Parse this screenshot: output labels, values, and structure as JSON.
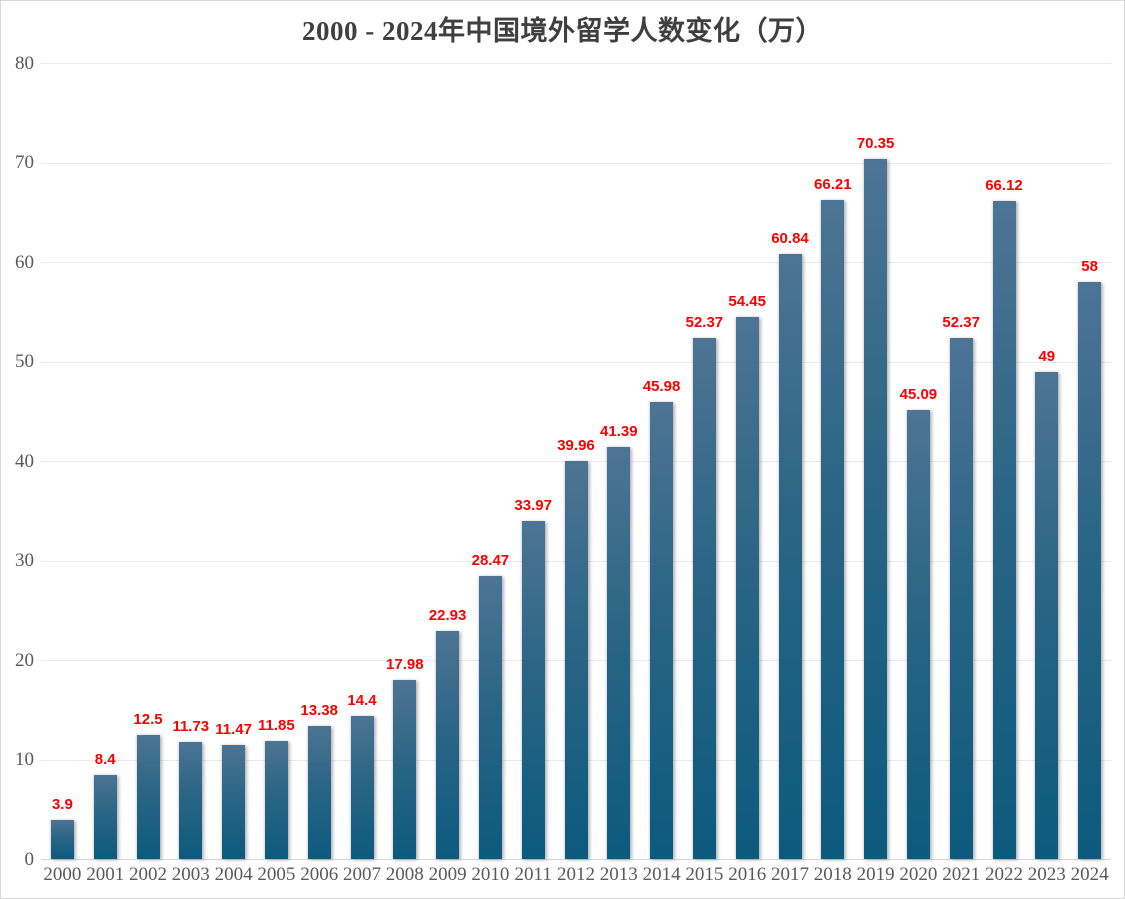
{
  "chart_data": {
    "type": "bar",
    "title": "2000 - 2024年中国境外留学人数变化（万）",
    "categories": [
      "2000",
      "2001",
      "2002",
      "2003",
      "2004",
      "2005",
      "2006",
      "2007",
      "2008",
      "2009",
      "2010",
      "2011",
      "2012",
      "2013",
      "2014",
      "2015",
      "2016",
      "2017",
      "2018",
      "2019",
      "2020",
      "2021",
      "2022",
      "2023",
      "2024"
    ],
    "values": [
      3.9,
      8.4,
      12.5,
      11.73,
      11.47,
      11.85,
      13.38,
      14.4,
      17.98,
      22.93,
      28.47,
      33.97,
      39.96,
      41.39,
      45.98,
      52.37,
      54.45,
      60.84,
      66.21,
      70.35,
      45.09,
      52.37,
      66.12,
      49,
      58
    ],
    "value_labels": [
      "3.9",
      "8.4",
      "12.5",
      "11.73",
      "11.47",
      "11.85",
      "13.38",
      "14.4",
      "17.98",
      "22.93",
      "28.47",
      "33.97",
      "39.96",
      "41.39",
      "45.98",
      "52.37",
      "54.45",
      "60.84",
      "66.21",
      "70.35",
      "45.09",
      "52.37",
      "66.12",
      "49",
      "58"
    ],
    "xlabel": "",
    "ylabel": "",
    "ylim": [
      0,
      80
    ],
    "yticks": [
      0,
      10,
      20,
      30,
      40,
      50,
      60,
      70,
      80
    ],
    "grid": "horizontal",
    "legend": "none",
    "colors": {
      "bar_gradient_top": "#4d7494",
      "bar_gradient_bottom": "#0c5a7e",
      "value_label": "#fe0000",
      "axis_text": "#595959",
      "title_text": "#3f3f3f",
      "gridline": "#eaeaea",
      "frame_border": "#d8d8d8",
      "background": "#ffffff"
    }
  }
}
